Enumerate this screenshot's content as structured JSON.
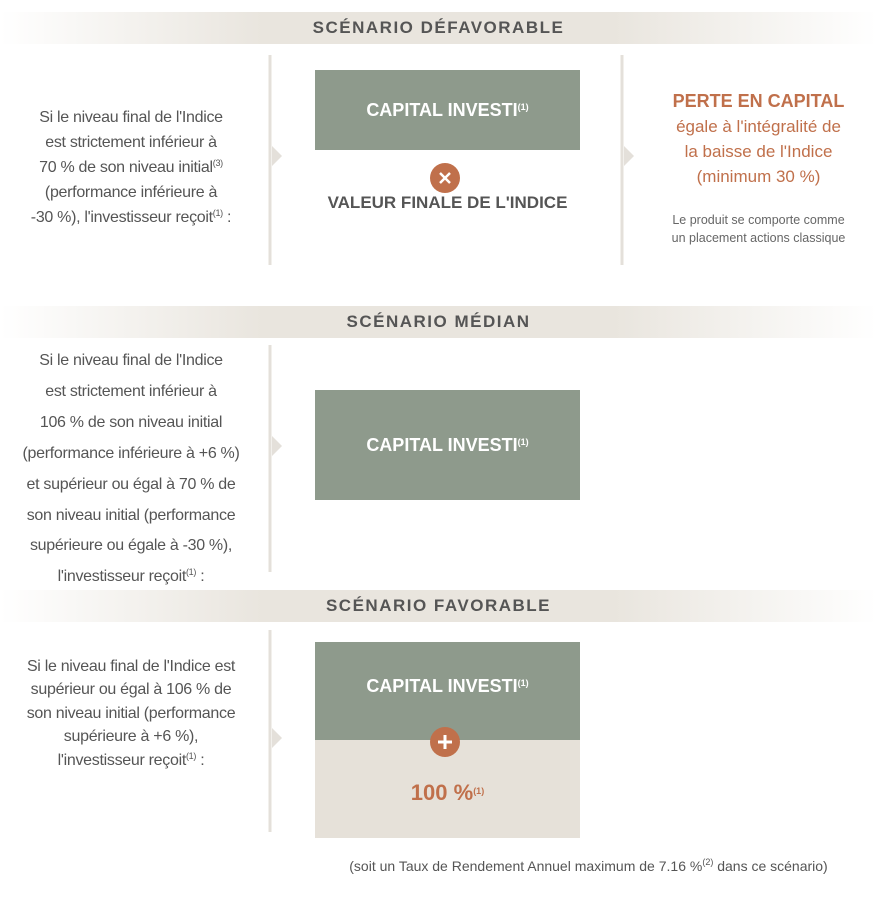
{
  "sections": [
    {
      "title": "SCÉNARIO DÉFAVORABLE",
      "condition": [
        {
          "text": "Si le niveau final de l'Indice"
        },
        {
          "text": "est strictement inférieur à"
        },
        {
          "text": "70 % de son niveau initial",
          "sup": "(3)"
        },
        {
          "text": "(performance inférieure à"
        },
        {
          "text": "-30 %), l'investisseur reçoit",
          "sup": "(1)",
          "after": " :"
        }
      ],
      "box": {
        "text": "CAPITAL INVESTI",
        "sup": "(1)"
      },
      "below": "VALEUR FINALE DE L'INDICE",
      "result": {
        "headline": "PERTE EN CAPITAL",
        "lines": [
          "égale à l'intégralité de",
          "la baisse de l'Indice",
          "(minimum 30 %)"
        ],
        "note": [
          "Le produit se comporte comme",
          "un placement actions classique"
        ]
      }
    },
    {
      "title": "SCÉNARIO MÉDIAN",
      "condition": [
        {
          "text": "Si le niveau final de l'Indice"
        },
        {
          "text": "est strictement inférieur à"
        },
        {
          "text": "106 % de son niveau initial"
        },
        {
          "text": "(performance inférieure à +6 %)"
        },
        {
          "text": "et supérieur ou égal à 70 % de"
        },
        {
          "text": "son niveau initial (performance"
        },
        {
          "text": "supérieure ou égale à -30 %),"
        },
        {
          "text": "l'investisseur reçoit",
          "sup": "(1)",
          "after": " :"
        }
      ],
      "box": {
        "text": "CAPITAL INVESTI",
        "sup": "(1)"
      }
    },
    {
      "title": "SCÉNARIO FAVORABLE",
      "condition": [
        {
          "text": "Si le niveau final de l'Indice est"
        },
        {
          "text": "supérieur ou égal à 106 % de"
        },
        {
          "text": "son niveau initial (performance"
        },
        {
          "text": "supérieure à +6 %),"
        },
        {
          "text": "l'investisseur reçoit",
          "sup": "(1)",
          "after": " :"
        }
      ],
      "box": {
        "text": "CAPITAL INVESTI",
        "sup": "(1)"
      },
      "bonus": {
        "text": "100 %",
        "sup": "(1)"
      },
      "footnote": {
        "text": "(soit un Taux de Rendement Annuel maximum de 7.16 %",
        "sup": "(2)",
        "after": " dans ce scénario)"
      }
    }
  ]
}
